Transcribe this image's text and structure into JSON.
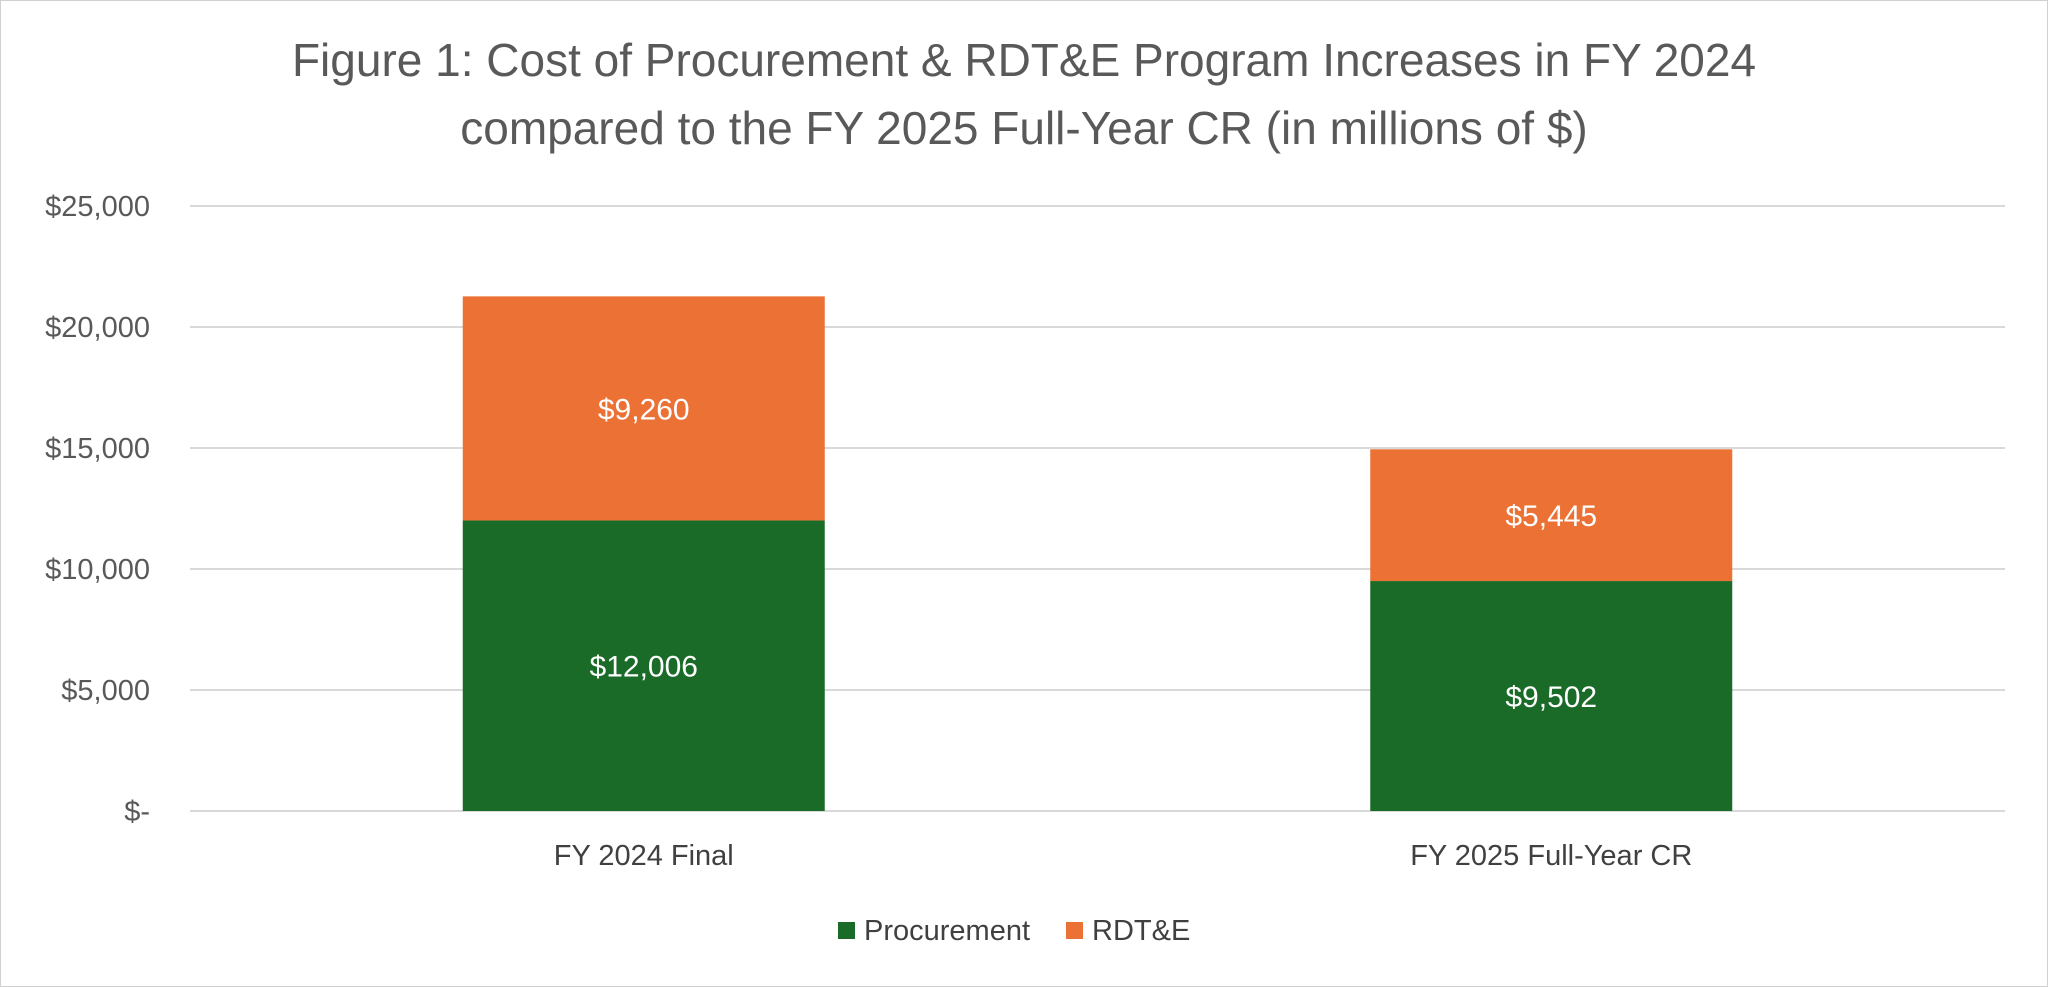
{
  "chart_data": {
    "type": "bar",
    "stacked": true,
    "title_lines": [
      "Figure 1: Cost of Procurement & RDT&E Program Increases in FY 2024",
      "compared to the FY 2025 Full-Year CR (in millions of $)"
    ],
    "categories": [
      "FY 2024 Final",
      "FY 2025 Full-Year CR"
    ],
    "series": [
      {
        "name": "Procurement",
        "color": "#1b6b28",
        "values": [
          12006,
          9502
        ],
        "labels": [
          "$12,006",
          "$9,502"
        ]
      },
      {
        "name": "RDT&E",
        "color": "#eb7134",
        "values": [
          9260,
          5445
        ],
        "labels": [
          "$9,260",
          "$5,445"
        ]
      }
    ],
    "ylim": [
      0,
      25000
    ],
    "yticks": [
      0,
      5000,
      10000,
      15000,
      20000,
      25000
    ],
    "ytick_labels": [
      "$-",
      "$5,000",
      "$10,000",
      "$15,000",
      "$20,000",
      "$25,000"
    ],
    "xlabel": "",
    "ylabel": "",
    "grid": true,
    "legend_position": "bottom"
  }
}
